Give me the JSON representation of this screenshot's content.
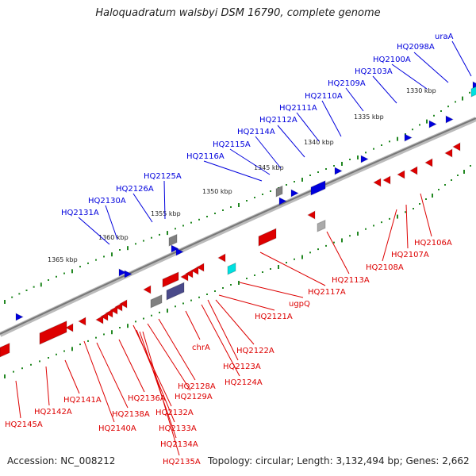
{
  "title": "Haloquadratum walsbyi DSM 16790, complete genome",
  "footer": {
    "accession": "Accession: NC_008212",
    "summary": "Topology: circular; Length: 3,132,494 bp; Genes: 2,662"
  },
  "colors": {
    "forward_gene": "#0000dd",
    "reverse_gene": "#dd0000",
    "rna_gene": "#00e0e0",
    "other_feature": "#808080",
    "backbone": "#888888",
    "ticks": "#228822"
  },
  "ticks": [
    "1330 kbp",
    "1335 kbp",
    "1340 kbp",
    "1345 kbp",
    "1350 kbp",
    "1355 kbp",
    "1360 kbp",
    "1365 kbp"
  ],
  "forward_labels": [
    "uraA",
    "HQ2098A",
    "HQ2100A",
    "HQ2103A",
    "HQ2109A",
    "HQ2110A",
    "HQ2111A",
    "HQ2112A",
    "HQ2114A",
    "HQ2115A",
    "HQ2116A",
    "HQ2125A",
    "HQ2126A",
    "HQ2130A",
    "HQ2131A"
  ],
  "reverse_labels": [
    "HQ2106A",
    "HQ2107A",
    "HQ2108A",
    "HQ2113A",
    "HQ2117A",
    "ugpQ",
    "HQ2121A",
    "chrA",
    "HQ2122A",
    "HQ2123A",
    "HQ2124A",
    "HQ2128A",
    "HQ2129A",
    "HQ2136A",
    "HQ2132A",
    "HQ2133A",
    "HQ2134A",
    "HQ2135A",
    "HQ2138A",
    "HQ2140A",
    "HQ2141A",
    "HQ2142A",
    "HQ2145A"
  ]
}
